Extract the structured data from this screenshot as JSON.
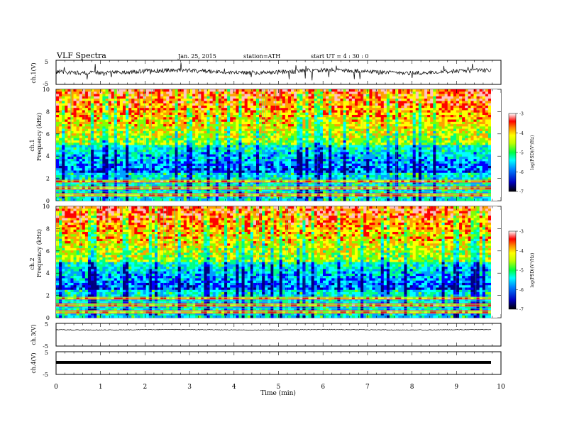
{
  "header": {
    "title": "VLF  Spectra",
    "date": "Jan. 25, 2015",
    "station": "station=ATH",
    "start": "start  UT  =   4  : 30 : 0"
  },
  "chart_data": [
    {
      "type": "line",
      "panel": "ch1-waveform",
      "ylabel": "ch.1(V)",
      "ylim": [
        -5,
        5
      ],
      "yticks": [
        "5",
        "-5"
      ],
      "xlim": [
        0,
        10
      ],
      "series": [
        {
          "values_note_only_visual": true
        }
      ]
    },
    {
      "type": "heatmap",
      "panel": "ch1-spectrogram",
      "ylabel": "ch.1\nFrequency (kHz)",
      "ylabel_line1": "ch.1",
      "ylabel_line2": "Frequency  (kHz)",
      "ylim": [
        0,
        10
      ],
      "yticks": [
        "0",
        "2",
        "4",
        "6",
        "8",
        "10"
      ],
      "xlim": [
        0,
        9.8
      ],
      "colorbar": {
        "label": "log(PSD)(V²/Hz)",
        "range": [
          -7,
          -3
        ],
        "ticks": [
          "-3",
          "-4",
          "-5",
          "-6",
          "-7"
        ]
      }
    },
    {
      "type": "heatmap",
      "panel": "ch2-spectrogram",
      "ylabel_line1": "ch.2",
      "ylabel_line2": "Frequency  (kHz)",
      "ylim": [
        0,
        10
      ],
      "yticks": [
        "0",
        "2",
        "4",
        "6",
        "8",
        "10"
      ],
      "xlim": [
        0,
        9.8
      ],
      "colorbar": {
        "label": "log(PSD)(V²/Hz)",
        "range": [
          -7,
          -3
        ],
        "ticks": [
          "-3",
          "-4",
          "-5",
          "-6",
          "-7"
        ]
      }
    },
    {
      "type": "line",
      "panel": "ch3-waveform",
      "ylabel": "ch.3(V)",
      "ylim": [
        -5,
        5
      ],
      "yticks": [
        "5",
        "-5"
      ],
      "baseline": 0
    },
    {
      "type": "line",
      "panel": "ch4-waveform",
      "ylabel": "ch.4(V)",
      "ylim": [
        -5,
        5
      ],
      "yticks": [
        "5",
        "-5"
      ],
      "baseline": -1.5
    }
  ],
  "xaxis": {
    "label": "Time  (min)",
    "ticks": [
      "0",
      "1",
      "2",
      "3",
      "4",
      "5",
      "6",
      "7",
      "8",
      "9",
      "10"
    ],
    "range": [
      0,
      10
    ]
  },
  "colors": {
    "spectrum": [
      "#000080",
      "#0000ff",
      "#00a0ff",
      "#00ffff",
      "#00ff80",
      "#80ff00",
      "#ffff00",
      "#ffa000",
      "#ff0000",
      "#ffc0c0"
    ]
  }
}
